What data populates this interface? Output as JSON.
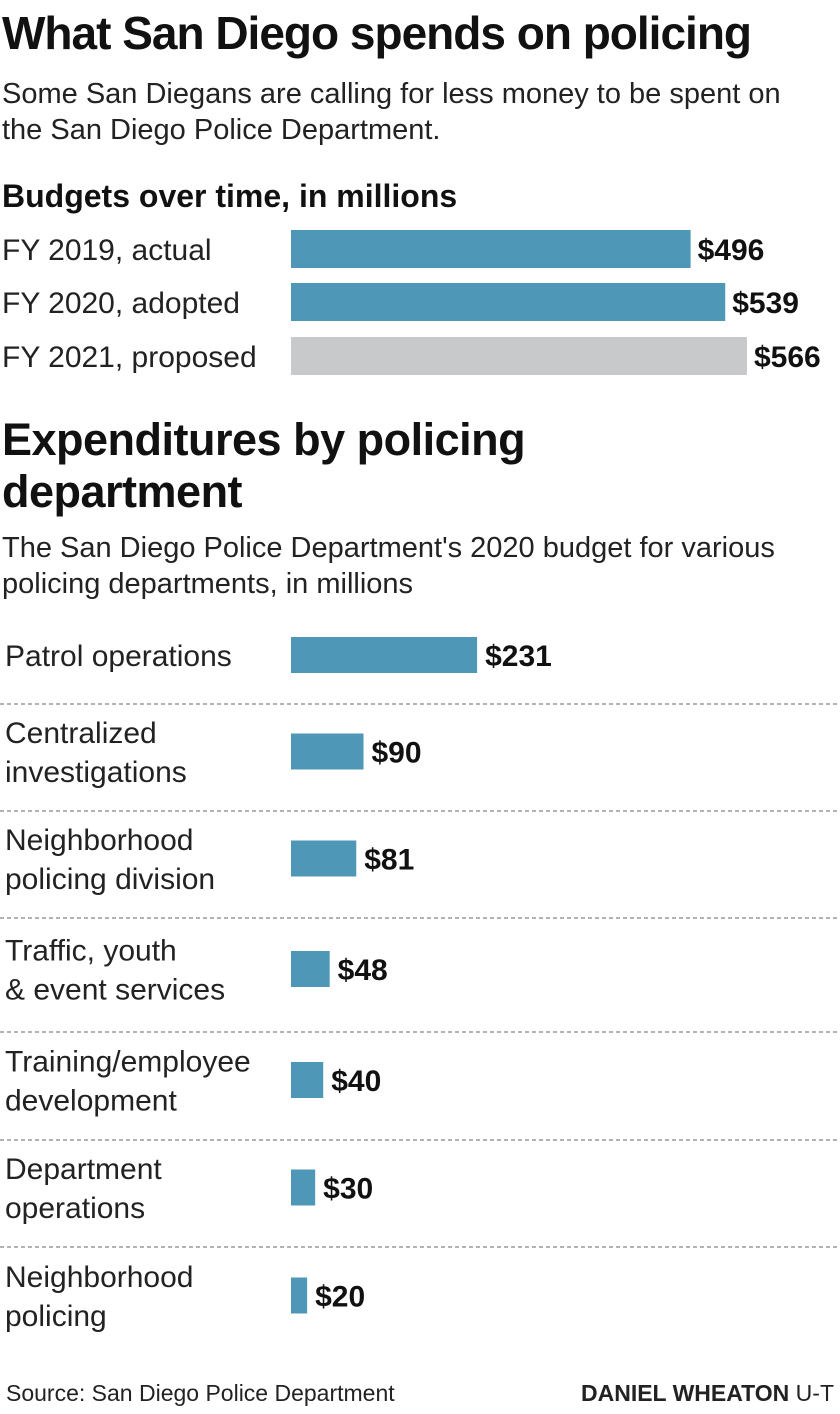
{
  "title": "What San Diego spends on policing",
  "subtitle": "Some San Diegans are calling for less money to be spent on the San Diego Police Department.",
  "section1_title": "Budgets over time, in millions",
  "section2_title": "Expenditures by policing department",
  "section2_subtitle": "The San Diego Police Department's 2020 budget for various policing departments, in millions",
  "source": "Source: San Diego Police Department",
  "credit": {
    "author": "DANIEL WHEATON",
    "org": "U-T"
  },
  "colors": {
    "primary": "#4e97b7",
    "proposed": "#c8c9cb",
    "divider": "#9a9a9a"
  },
  "chart_data": [
    {
      "type": "bar",
      "orientation": "horizontal",
      "title": "Budgets over time, in millions",
      "categories": [
        "FY 2019, actual",
        "FY 2020, adopted",
        "FY 2021, proposed"
      ],
      "values": [
        496,
        539,
        566
      ],
      "value_labels": [
        "$496",
        "$539",
        "$566"
      ],
      "bar_colors": [
        "#4e97b7",
        "#4e97b7",
        "#c8c9cb"
      ],
      "xlim": [
        0,
        566
      ],
      "grid": false
    },
    {
      "type": "bar",
      "orientation": "horizontal",
      "title": "Expenditures by policing department",
      "categories": [
        [
          "Patrol operations"
        ],
        [
          "Centralized",
          "investigations"
        ],
        [
          "Neighborhood",
          "policing division"
        ],
        [
          "Traffic, youth",
          "& event services"
        ],
        [
          "Training/employee",
          "development"
        ],
        [
          "Department",
          "operations"
        ],
        [
          "Neighborhood",
          "policing"
        ]
      ],
      "values": [
        231,
        90,
        81,
        48,
        40,
        30,
        20
      ],
      "value_labels": [
        "$231",
        "$90",
        "$81",
        "$48",
        "$40",
        "$30",
        "$20"
      ],
      "xlim": [
        0,
        566
      ],
      "grid": false
    }
  ]
}
